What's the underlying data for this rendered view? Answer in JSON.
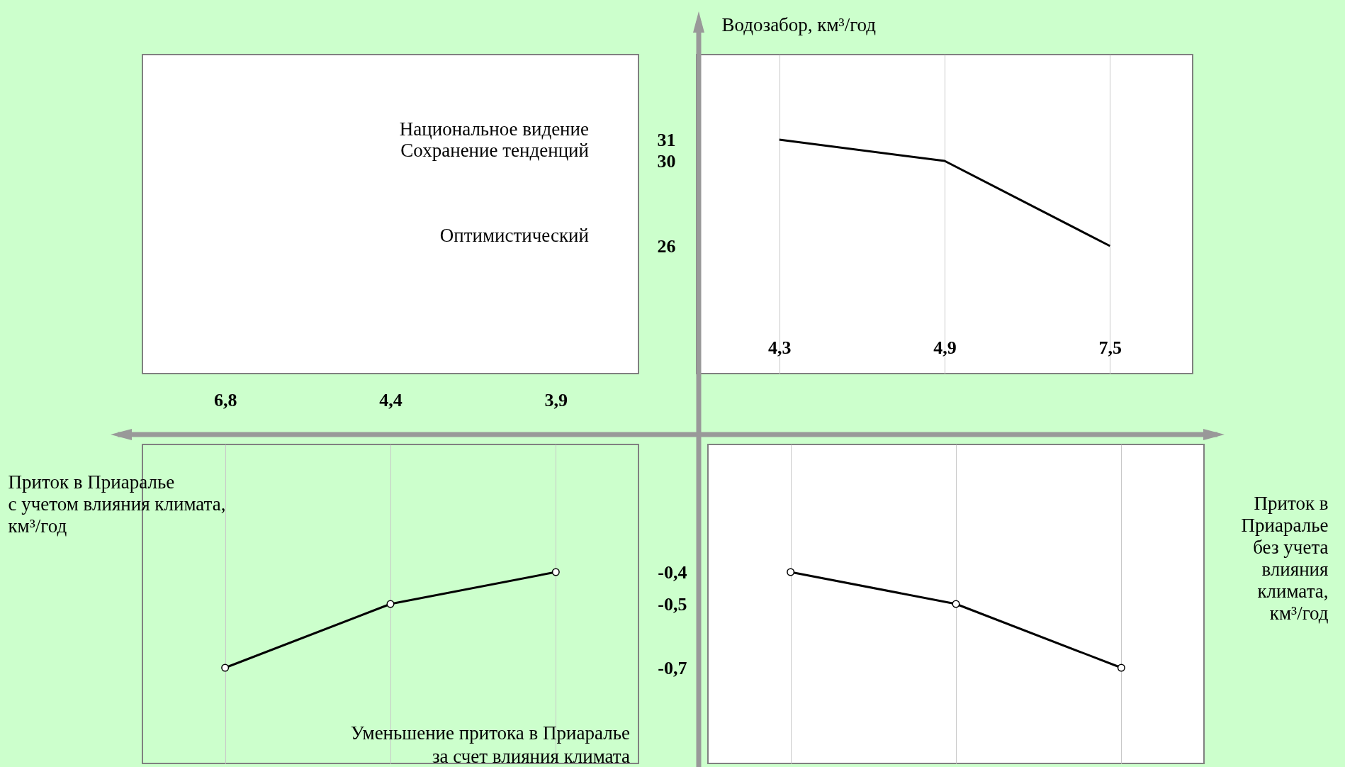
{
  "chart_data": [
    {
      "type": "line",
      "categories": [
        "4,3",
        "4,9",
        "7,5"
      ],
      "values": [
        31,
        30,
        26
      ],
      "color": "#000000",
      "ylim": [
        20,
        35
      ],
      "yticks": [
        31,
        30,
        26
      ],
      "ylabel": "Водозабор, км³/год",
      "grid": "x",
      "annotations": [
        "Национальное видение",
        "Сохранение тенденций",
        "Оптимистический"
      ]
    },
    {
      "type": "line",
      "categories": [
        "6,8",
        "4,4",
        "3,9"
      ],
      "values": [
        -0.7,
        -0.5,
        -0.4
      ],
      "color": "#000000",
      "marker": "circle",
      "ylim": [
        -1,
        0
      ],
      "yticks": [
        -0.7,
        -0.5,
        -0.4
      ],
      "tick_labels": "x",
      "grid": "x",
      "xlabel": "Приток в Приаралье\n с учетом влияния климата,\nкм³/год",
      "annotations": [
        "Уменьшение притока в Приаралье\nза счет влияния климата"
      ]
    },
    {
      "type": "line",
      "categories": [
        "4,3",
        "4,9",
        "7,5"
      ],
      "values": [
        -0.4,
        -0.5,
        -0.7
      ],
      "color": "#000000",
      "marker": "circle",
      "ylim": [
        -1,
        0
      ],
      "yticks": [
        {
          "value": -0.4,
          "label": "-0,4"
        },
        {
          "value": -0.5,
          "label": "-0,5"
        },
        {
          "value": -0.7,
          "label": "-0,7"
        }
      ],
      "tick_labels": "y",
      "grid": "x",
      "xlabel": "Приток в\nПриаралье\nбез учета\nвлияния\nклимата,\nкм³/год"
    }
  ]
}
